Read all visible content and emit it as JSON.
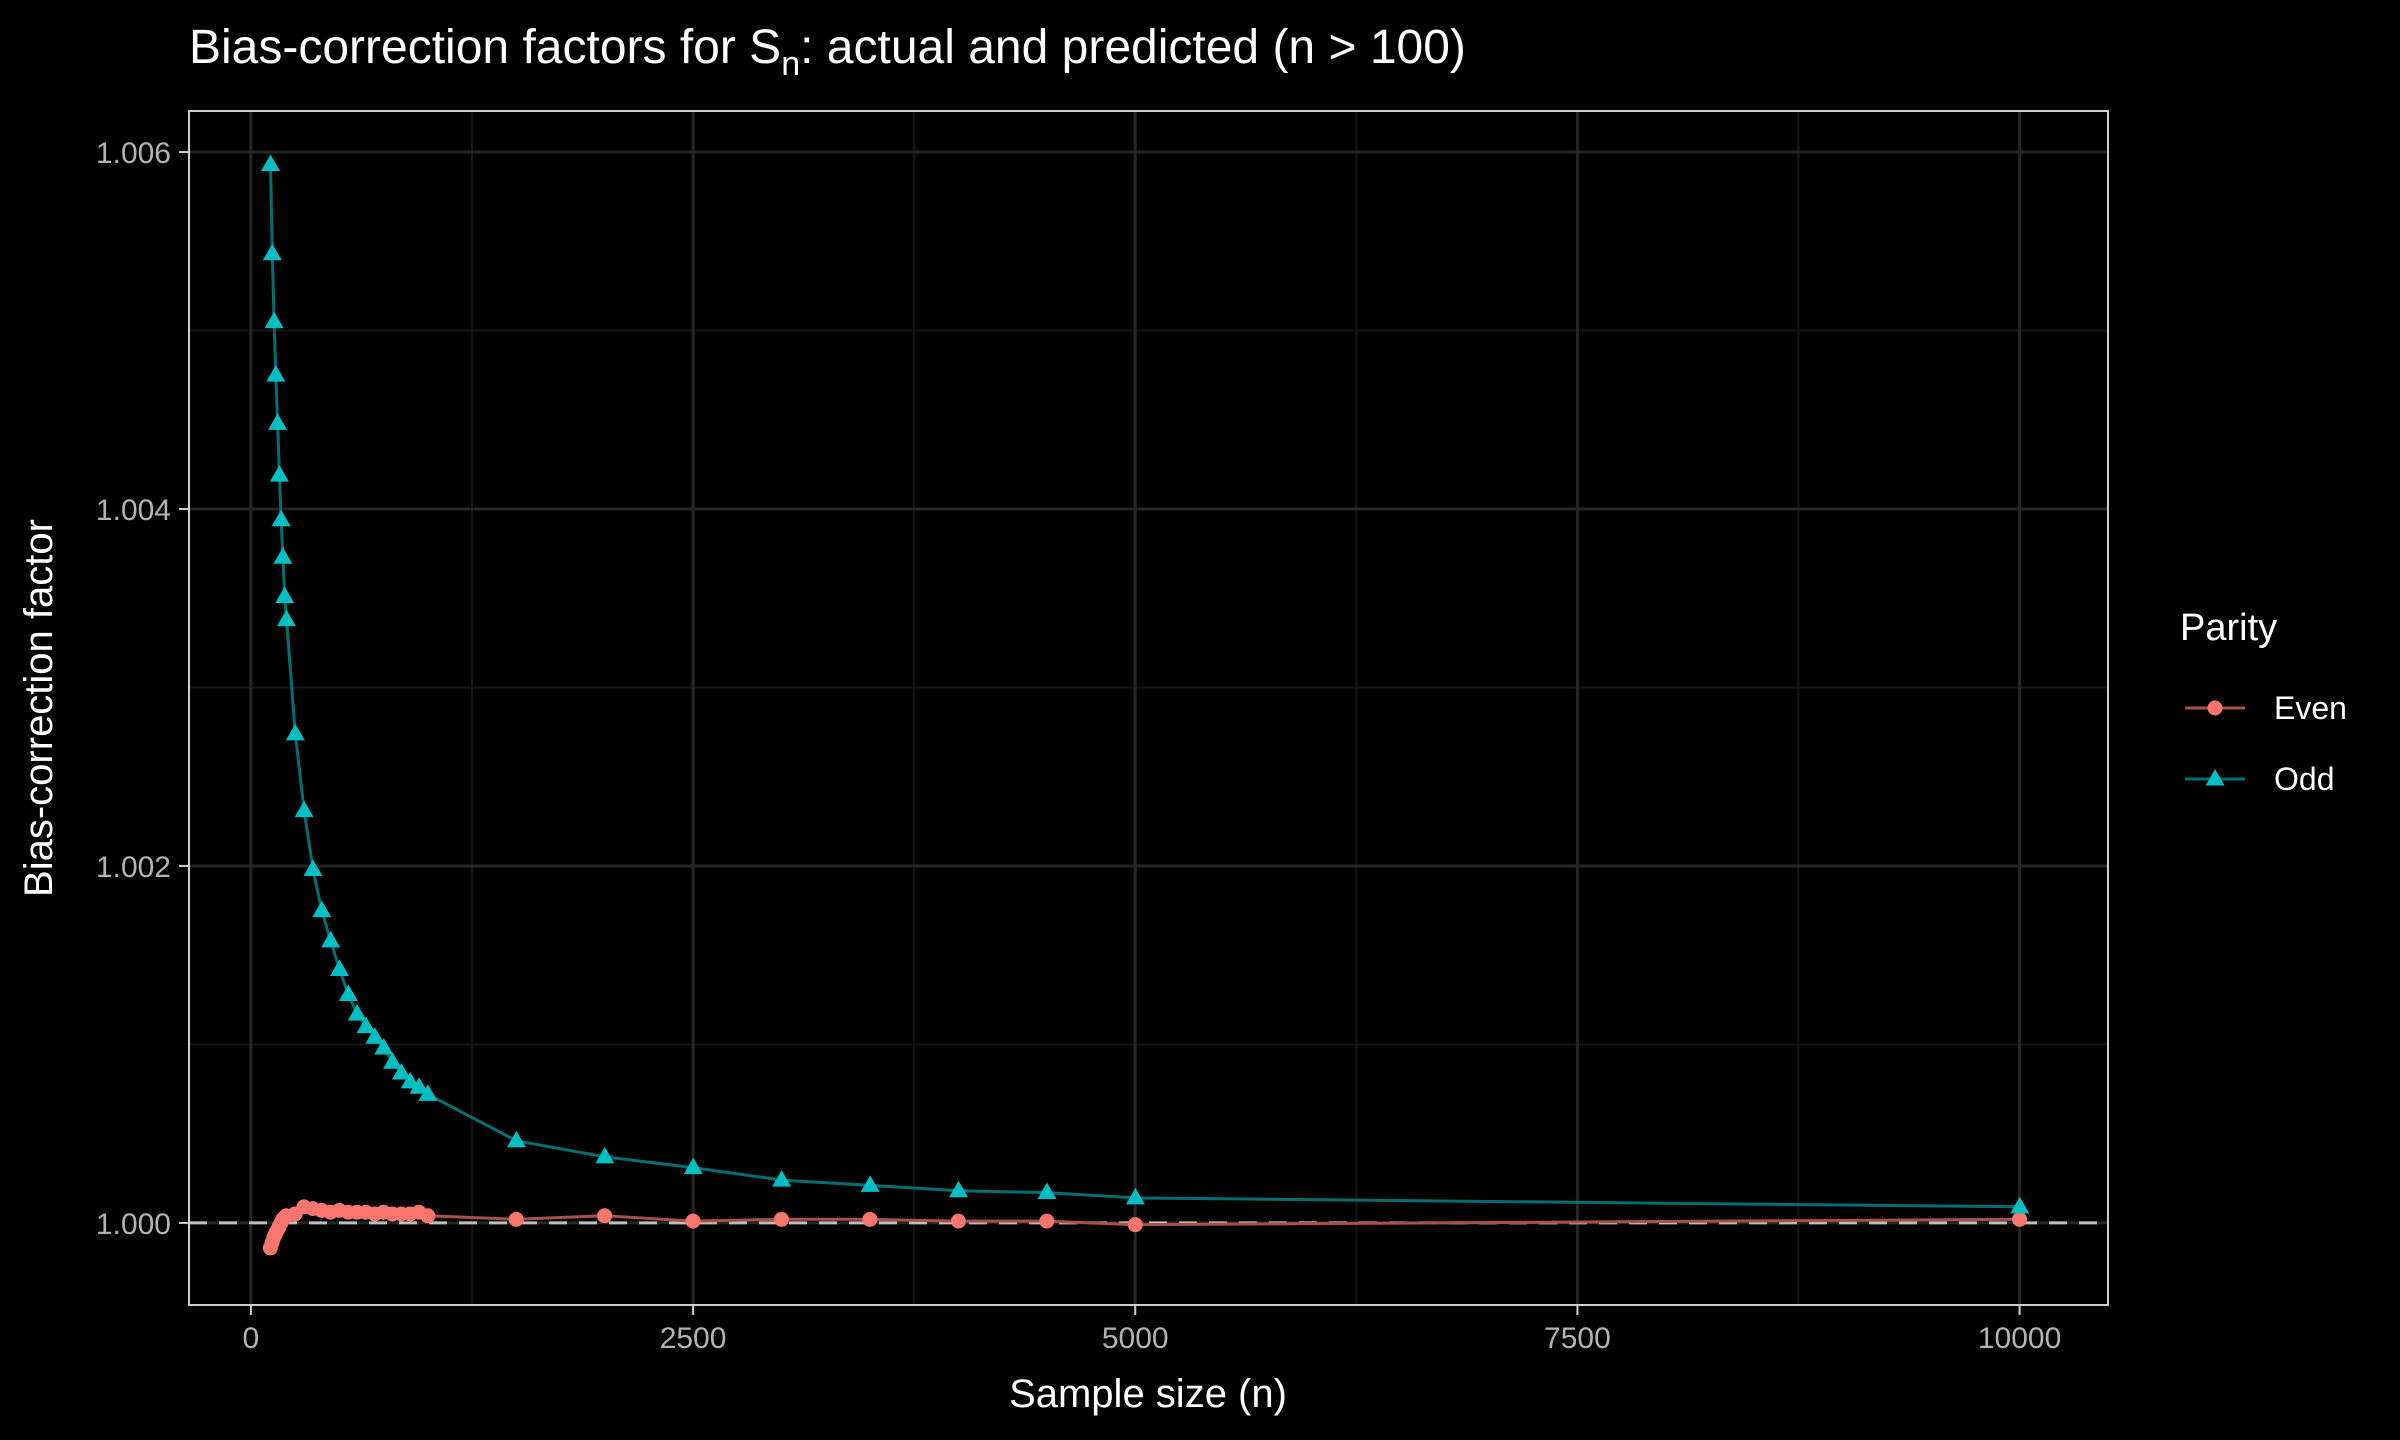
{
  "chart_data": {
    "type": "line",
    "title": "Bias-correction factors for S",
    "title_subscript": "n",
    "title_rest": ": actual and predicted (n > 100)",
    "xlabel": "Sample size (n)",
    "ylabel": "Bias-correction factor",
    "xlim": [
      -350,
      10500
    ],
    "ylim": [
      0.99954,
      1.00623
    ],
    "x_ticks": [
      0,
      2500,
      5000,
      7500,
      10000
    ],
    "x_tick_labels": [
      "0",
      "2500",
      "5000",
      "7500",
      "10000"
    ],
    "y_ticks": [
      1.0,
      1.002,
      1.004,
      1.006
    ],
    "y_tick_labels": [
      "1.000",
      "1.002",
      "1.004",
      "1.006"
    ],
    "reference_line": {
      "y": 1.0,
      "style": "dashed",
      "color": "#bebebe"
    },
    "grid": true,
    "legend": {
      "title": "Parity",
      "position": "right"
    },
    "series": [
      {
        "name": "Even",
        "color": "#F8766D",
        "marker": "circle",
        "x": [
          110,
          120,
          130,
          140,
          150,
          160,
          170,
          180,
          190,
          200,
          250,
          300,
          350,
          400,
          450,
          500,
          550,
          600,
          650,
          700,
          750,
          800,
          850,
          900,
          950,
          1000,
          1500,
          2000,
          2500,
          3000,
          3500,
          4000,
          4500,
          5000,
          10000
        ],
        "y": [
          0.99986,
          0.99989,
          0.99992,
          0.99994,
          0.99996,
          0.99998,
          1.0,
          1.00002,
          1.00003,
          1.00004,
          1.00005,
          1.00009,
          1.00008,
          1.00007,
          1.00006,
          1.00007,
          1.00006,
          1.00006,
          1.00006,
          1.00005,
          1.00006,
          1.00005,
          1.00005,
          1.00005,
          1.00006,
          1.00004,
          1.00002,
          1.00004,
          1.00001,
          1.00002,
          1.00002,
          1.00001,
          1.00001,
          0.99999,
          1.00002
        ]
      },
      {
        "name": "Odd",
        "color": "#00BFC4",
        "marker": "triangle",
        "x": [
          111,
          121,
          131,
          141,
          151,
          161,
          171,
          181,
          191,
          201,
          251,
          301,
          351,
          401,
          451,
          501,
          551,
          601,
          651,
          701,
          751,
          801,
          851,
          901,
          951,
          1001,
          1501,
          2001,
          2501,
          3001,
          3501,
          4001,
          4501,
          5001,
          10001
        ],
        "y": [
          1.00593,
          1.00543,
          1.00505,
          1.00475,
          1.00448,
          1.00419,
          1.00394,
          1.00373,
          1.00351,
          1.00338,
          1.00274,
          1.00231,
          1.00198,
          1.00175,
          1.00158,
          1.00142,
          1.00128,
          1.00117,
          1.0011,
          1.00104,
          1.00098,
          1.0009,
          1.00084,
          1.00079,
          1.00076,
          1.00072,
          1.00046,
          1.00037,
          1.00031,
          1.00024,
          1.00021,
          1.00018,
          1.00017,
          1.00014,
          1.00009
        ]
      }
    ]
  }
}
